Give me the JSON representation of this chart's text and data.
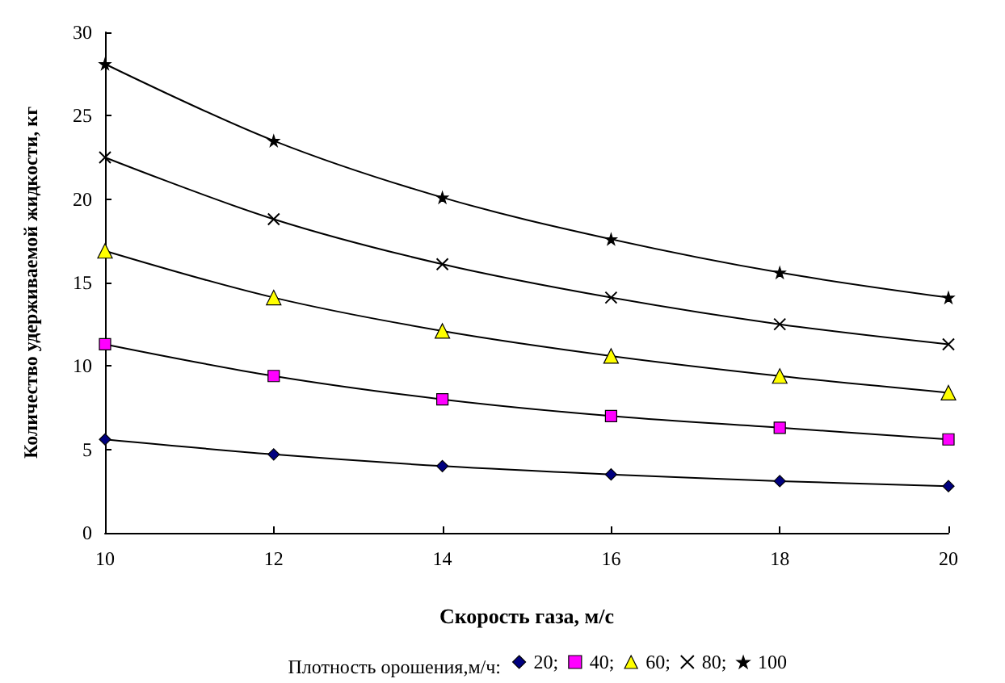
{
  "chart_data": {
    "type": "line",
    "xlabel": "Скорость газа, м/с",
    "ylabel": "Количество удерживаемой жидкости, кг",
    "legend_title": "Плотность орошения,м/ч:",
    "legend": "bottom",
    "grid": false,
    "x": [
      10,
      12,
      14,
      16,
      18,
      20
    ],
    "xlim": [
      10,
      20
    ],
    "xticks": [
      10,
      12,
      14,
      16,
      18,
      20
    ],
    "ylim": [
      0,
      30
    ],
    "yticks": [
      0,
      5,
      10,
      15,
      20,
      25,
      30
    ],
    "series": [
      {
        "name": "20;",
        "color": "#000080",
        "marker": "diamond",
        "values": [
          5.6,
          4.7,
          4.0,
          3.5,
          3.1,
          2.8
        ]
      },
      {
        "name": "40;",
        "color": "#ff00ff",
        "marker": "square",
        "values": [
          11.3,
          9.4,
          8.0,
          7.0,
          6.3,
          5.6
        ]
      },
      {
        "name": "60;",
        "color": "#ffff00",
        "marker": "triangle",
        "values": [
          16.9,
          14.1,
          12.1,
          10.6,
          9.4,
          8.4
        ]
      },
      {
        "name": "80;",
        "color": "#000000",
        "marker": "cross",
        "values": [
          22.5,
          18.8,
          16.1,
          14.1,
          12.5,
          11.3
        ]
      },
      {
        "name": "100",
        "color": "#000000",
        "marker": "star",
        "values": [
          28.1,
          23.5,
          20.1,
          17.6,
          15.6,
          14.1
        ]
      }
    ]
  }
}
